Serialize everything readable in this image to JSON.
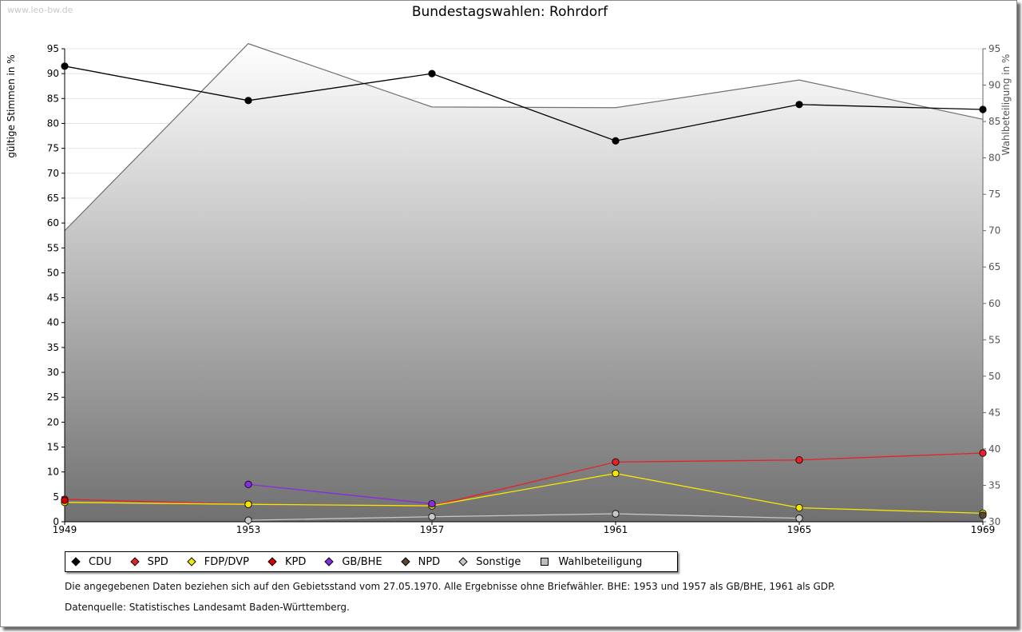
{
  "watermark": "www.leo-bw.de",
  "chart_data": {
    "type": "line",
    "title": "Bundestagswahlen: Rohrdorf",
    "ylabel": "gültige Stimmen in %",
    "y2label": "Wahlbeteiligung in %",
    "ylim": [
      0,
      95
    ],
    "y2lim": [
      30,
      95
    ],
    "yticks": [
      0,
      5,
      10,
      15,
      20,
      25,
      30,
      35,
      40,
      45,
      50,
      55,
      60,
      65,
      70,
      75,
      80,
      85,
      90,
      95
    ],
    "y2ticks": [
      30,
      35,
      40,
      45,
      50,
      55,
      60,
      65,
      70,
      75,
      80,
      85,
      90,
      95
    ],
    "categories": [
      "1949",
      "1953",
      "1957",
      "1961",
      "1965",
      "1969"
    ],
    "series": [
      {
        "name": "CDU",
        "color": "#000000",
        "values": [
          91.5,
          84.6,
          90.0,
          76.5,
          83.8,
          82.8
        ]
      },
      {
        "name": "SPD",
        "color": "#e8202a",
        "values": [
          4.5,
          3.5,
          3.2,
          12.0,
          12.4,
          13.8
        ]
      },
      {
        "name": "FDP/DVP",
        "color": "#f5e800",
        "values": [
          3.9,
          3.5,
          3.2,
          9.7,
          2.8,
          1.7
        ]
      },
      {
        "name": "KPD",
        "color": "#d40000",
        "values": [
          4.3,
          null,
          null,
          null,
          null,
          null
        ]
      },
      {
        "name": "GB/BHE",
        "color": "#8a2be2",
        "values": [
          null,
          7.5,
          3.6,
          null,
          null,
          null
        ]
      },
      {
        "name": "NPD",
        "color": "#5b4632",
        "values": [
          null,
          null,
          null,
          null,
          null,
          1.3
        ]
      },
      {
        "name": "Sonstige",
        "color": "#c8c8c8",
        "values": [
          null,
          0.3,
          1.0,
          1.6,
          0.7,
          null
        ]
      }
    ],
    "turnout": {
      "name": "Wahlbeteiligung",
      "axis": "right",
      "values": [
        70.0,
        95.7,
        87.0,
        86.9,
        90.7,
        85.3
      ]
    }
  },
  "legend": [
    {
      "label": "CDU",
      "color": "#000000",
      "marker": "dot"
    },
    {
      "label": "SPD",
      "color": "#e8202a",
      "marker": "dot"
    },
    {
      "label": "FDP/DVP",
      "color": "#f5e800",
      "marker": "dot"
    },
    {
      "label": "KPD",
      "color": "#d40000",
      "marker": "dot"
    },
    {
      "label": "GB/BHE",
      "color": "#8a2be2",
      "marker": "dot"
    },
    {
      "label": "NPD",
      "color": "#5b4632",
      "marker": "dot"
    },
    {
      "label": "Sonstige",
      "color": "#c8c8c8",
      "marker": "dot"
    },
    {
      "label": "Wahlbeteiligung",
      "color": "#bdbdbd",
      "marker": "box"
    }
  ],
  "notes": {
    "note1": "Die angegebenen Daten beziehen sich auf den Gebietsstand vom 27.05.1970. Alle Ergebnisse ohne Briefwähler. BHE: 1953 und 1957 als GB/BHE, 1961 als GDP.",
    "note2": "Datenquelle: Statistisches Landesamt Baden-Württemberg."
  }
}
